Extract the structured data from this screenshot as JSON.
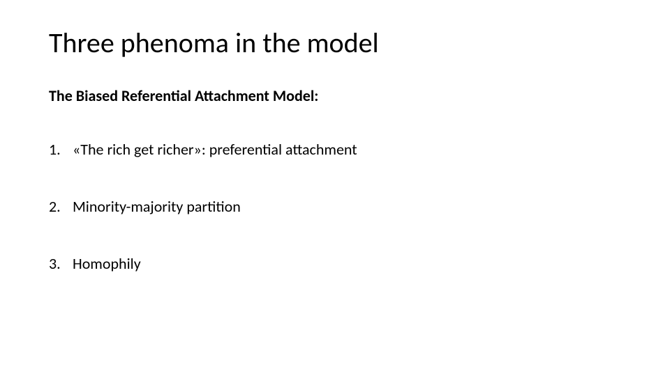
{
  "slide": {
    "title": "Three phenoma in the model",
    "subtitle": "The Biased Referential Attachment Model:",
    "items": [
      {
        "num": "1.",
        "text": "«The rich get richer»: preferential attachment"
      },
      {
        "num": "2.",
        "text": "Minority-majority partition"
      },
      {
        "num": "3.",
        "text": "Homophily"
      }
    ],
    "style": {
      "background_color": "#ffffff",
      "text_color": "#000000",
      "title_fontsize": 40,
      "subtitle_fontsize": 22,
      "body_fontsize": 22,
      "font_family": "Calibri"
    }
  }
}
